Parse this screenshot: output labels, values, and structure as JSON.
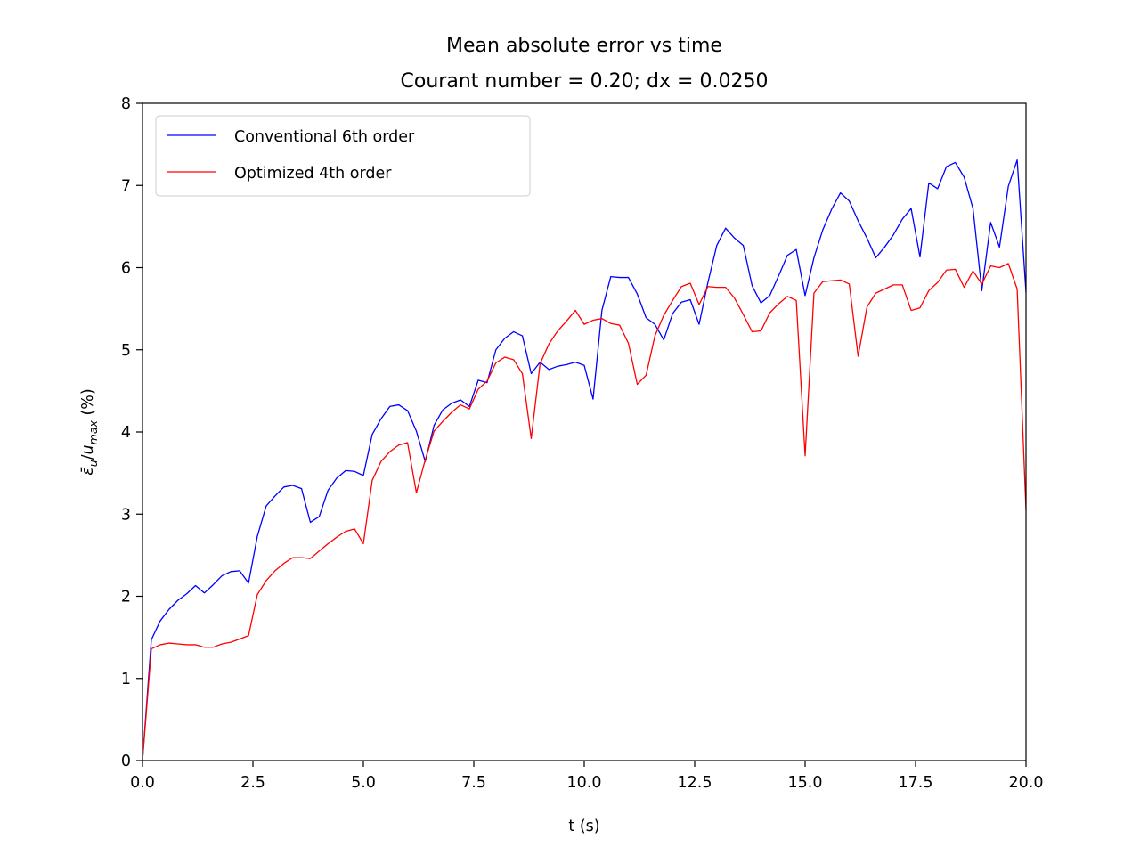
{
  "chart_data": {
    "type": "line",
    "title": "Mean absolute error vs time",
    "subtitle": "Courant number = 0.20; dx = 0.0250",
    "xlabel": "t (s)",
    "ylabel": {
      "eps": "ε̄",
      "eps_sub": "u",
      "slash": "/",
      "u": "u",
      "u_sub": "max",
      "unit": " (%)"
    },
    "xlim": [
      0,
      20
    ],
    "ylim": [
      0,
      8
    ],
    "xticks": [
      "0.0",
      "2.5",
      "5.0",
      "7.5",
      "10.0",
      "12.5",
      "15.0",
      "17.5",
      "20.0"
    ],
    "yticks": [
      "0",
      "1",
      "2",
      "3",
      "4",
      "5",
      "6",
      "7",
      "8"
    ],
    "grid": false,
    "legend_position": "top-left",
    "x": [
      0,
      0.2,
      0.4,
      0.6,
      0.8,
      1.0,
      1.2,
      1.4,
      1.6,
      1.8,
      2.0,
      2.2,
      2.4,
      2.6,
      2.8,
      3.0,
      3.2,
      3.4,
      3.6,
      3.8,
      4.0,
      4.2,
      4.4,
      4.6,
      4.8,
      5.0,
      5.2,
      5.4,
      5.6,
      5.8,
      6.0,
      6.2,
      6.4,
      6.6,
      6.8,
      7.0,
      7.2,
      7.4,
      7.6,
      7.8,
      8.0,
      8.2,
      8.4,
      8.6,
      8.8,
      9.0,
      9.2,
      9.4,
      9.6,
      9.8,
      10.0,
      10.2,
      10.4,
      10.6,
      10.8,
      11.0,
      11.2,
      11.4,
      11.6,
      11.8,
      12.0,
      12.2,
      12.4,
      12.6,
      12.8,
      13.0,
      13.2,
      13.4,
      13.6,
      13.8,
      14.0,
      14.2,
      14.4,
      14.6,
      14.8,
      15.0,
      15.2,
      15.4,
      15.6,
      15.8,
      16.0,
      16.2,
      16.4,
      16.6,
      16.8,
      17.0,
      17.2,
      17.4,
      17.6,
      17.8,
      18.0,
      18.2,
      18.4,
      18.6,
      18.8,
      19.0,
      19.2,
      19.4,
      19.6,
      19.8,
      20.0
    ],
    "series": [
      {
        "name": "Conventional 6th order",
        "color": "#0000ff",
        "values": [
          0,
          1.47,
          1.7,
          1.84,
          1.95,
          2.03,
          2.13,
          2.04,
          2.14,
          2.25,
          2.3,
          2.31,
          2.16,
          2.73,
          3.1,
          3.22,
          3.33,
          3.35,
          3.31,
          2.9,
          2.97,
          3.29,
          3.44,
          3.53,
          3.52,
          3.47,
          3.97,
          4.16,
          4.31,
          4.33,
          4.26,
          4.01,
          3.64,
          4.08,
          4.27,
          4.35,
          4.39,
          4.31,
          4.63,
          4.6,
          5.0,
          5.14,
          5.22,
          5.17,
          4.71,
          4.85,
          4.76,
          4.8,
          4.82,
          4.85,
          4.81,
          4.4,
          5.48,
          5.89,
          5.88,
          5.88,
          5.68,
          5.39,
          5.31,
          5.12,
          5.44,
          5.58,
          5.61,
          5.31,
          5.82,
          6.27,
          6.48,
          6.36,
          6.27,
          5.78,
          5.57,
          5.66,
          5.9,
          6.15,
          6.22,
          5.66,
          6.12,
          6.46,
          6.71,
          6.91,
          6.81,
          6.57,
          6.36,
          6.12,
          6.25,
          6.4,
          6.59,
          6.72,
          6.13,
          7.03,
          6.96,
          7.23,
          7.28,
          7.1,
          6.72,
          5.72,
          6.55,
          6.25,
          6.99,
          7.31,
          5.7
        ]
      },
      {
        "name": "Optimized 4th order",
        "color": "#ff0000",
        "values": [
          0,
          1.36,
          1.41,
          1.43,
          1.42,
          1.41,
          1.41,
          1.38,
          1.38,
          1.42,
          1.44,
          1.48,
          1.52,
          2.02,
          2.19,
          2.31,
          2.4,
          2.47,
          2.47,
          2.46,
          2.55,
          2.64,
          2.72,
          2.79,
          2.82,
          2.64,
          3.41,
          3.64,
          3.76,
          3.84,
          3.87,
          3.26,
          3.66,
          4.01,
          4.13,
          4.24,
          4.33,
          4.28,
          4.52,
          4.62,
          4.84,
          4.91,
          4.88,
          4.71,
          3.92,
          4.83,
          5.07,
          5.23,
          5.35,
          5.48,
          5.31,
          5.36,
          5.38,
          5.32,
          5.3,
          5.08,
          4.58,
          4.69,
          5.17,
          5.42,
          5.6,
          5.77,
          5.81,
          5.55,
          5.77,
          5.76,
          5.76,
          5.63,
          5.43,
          5.22,
          5.23,
          5.45,
          5.56,
          5.65,
          5.6,
          3.71,
          5.69,
          5.83,
          5.84,
          5.85,
          5.8,
          4.92,
          5.52,
          5.69,
          5.74,
          5.79,
          5.79,
          5.48,
          5.51,
          5.72,
          5.82,
          5.97,
          5.98,
          5.76,
          5.96,
          5.8,
          6.02,
          6.0,
          6.05,
          5.74,
          3.05
        ]
      }
    ]
  }
}
